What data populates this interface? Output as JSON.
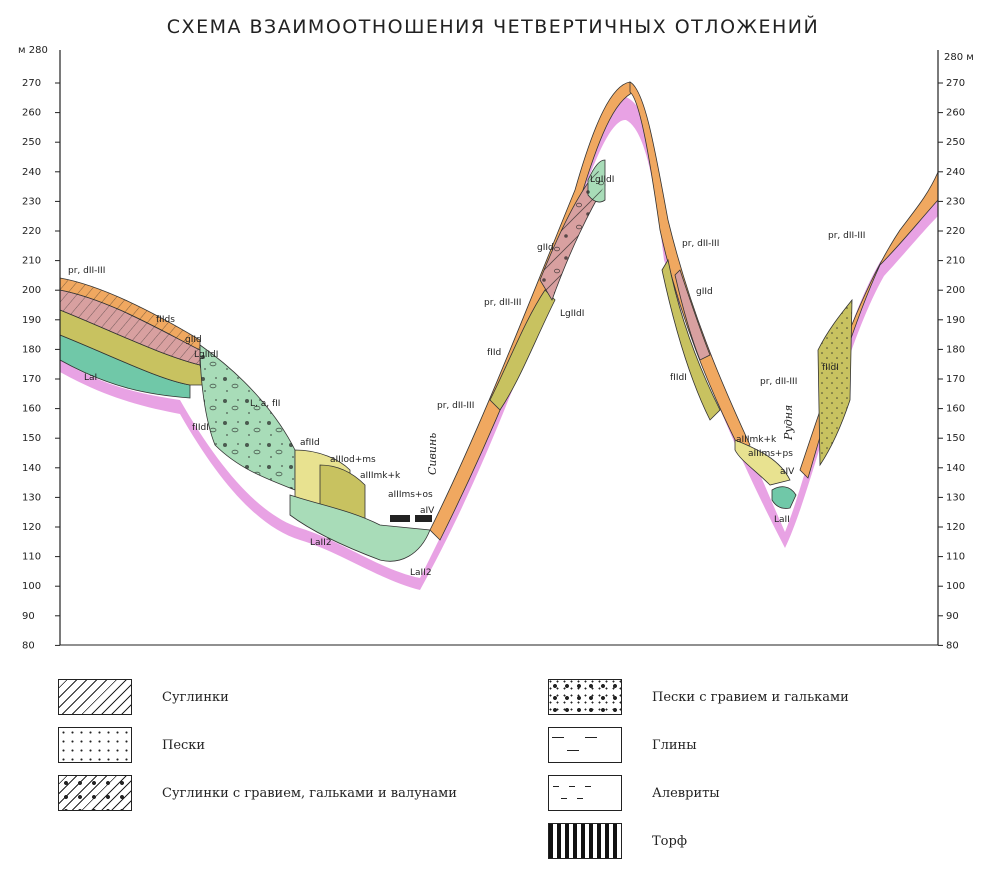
{
  "title": "СХЕМА ВЗАИМООТНОШЕНИЯ ЧЕТВЕРТИЧНЫХ ОТЛОЖЕНИЙ",
  "axis": {
    "unit_left": "м 280",
    "unit_right": "280 м",
    "ticks": [
      "270",
      "260",
      "250",
      "240",
      "230",
      "220",
      "210",
      "200",
      "190",
      "180",
      "170",
      "160",
      "150",
      "140",
      "130",
      "120",
      "110",
      "100",
      "90",
      "80"
    ]
  },
  "layer_labels": [
    "pr, dII-III",
    "fIIds",
    "gIId",
    "LgIIdI",
    "LaI",
    "fIIdI",
    "L, a, fII",
    "afIId",
    "aIIIod+ms",
    "aIIImk+k",
    "aIIIms+os",
    "aIV",
    "LaII2",
    "LaII2",
    "pr, dII-III",
    "fIId",
    "pr, dII-III",
    "gIId",
    "LgIIdI",
    "LgIIdI",
    "pr, dII-III",
    "gIId",
    "fIIdI",
    "aIIImk+k",
    "aIIIms+ps",
    "aIV",
    "LaII",
    "pr, dII-III",
    "fIIdI",
    "pr, dII-III"
  ],
  "places": [
    "Сивинь",
    "Рудня"
  ],
  "legend": [
    {
      "label": "Суглинки",
      "pattern": "hatch"
    },
    {
      "label": "Пески",
      "pattern": "dots"
    },
    {
      "label": "Суглинки с гравием, гальками и валунами",
      "pattern": "hatch-gravel"
    },
    {
      "label": "Пески с гравием и гальками",
      "pattern": "gravel"
    },
    {
      "label": "Глины",
      "pattern": "dash-long"
    },
    {
      "label": "Алевриты",
      "pattern": "dash-short"
    },
    {
      "label": "Торф",
      "pattern": "peat"
    }
  ],
  "colors": {
    "base": "#e8a2e4",
    "orange": "#f0a860",
    "yellow_olive": "#c8c260",
    "green": "#a8dcb8",
    "teal": "#70c8a8",
    "pink_brown": "#d8a0a0",
    "yellow": "#e8e290"
  }
}
